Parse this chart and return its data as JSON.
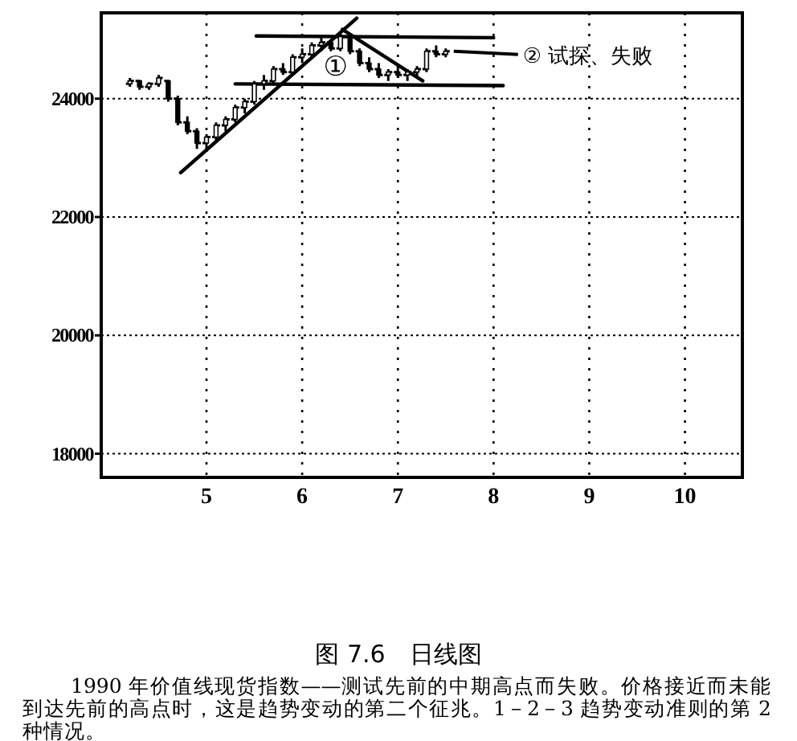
{
  "chart_data": {
    "type": "candlestick",
    "color": "#000000",
    "x": [
      4.2,
      4.3,
      4.4,
      4.5,
      4.6,
      4.7,
      4.8,
      4.9,
      5.0,
      5.1,
      5.2,
      5.3,
      5.4,
      5.5,
      5.6,
      5.7,
      5.8,
      5.9,
      6.0,
      6.1,
      6.2,
      6.3,
      6.4,
      6.5,
      6.6,
      6.7,
      6.8,
      6.9,
      7.0,
      7.1,
      7.2,
      7.3,
      7.4,
      7.5
    ],
    "ohlc": [
      [
        24250,
        24350,
        24200,
        24300
      ],
      [
        24300,
        24320,
        24150,
        24200
      ],
      [
        24200,
        24280,
        24150,
        24250
      ],
      [
        24250,
        24400,
        24200,
        24350
      ],
      [
        24300,
        24320,
        23950,
        24000
      ],
      [
        24000,
        24050,
        23550,
        23600
      ],
      [
        23600,
        23700,
        23400,
        23450
      ],
      [
        23450,
        23500,
        23150,
        23250
      ],
      [
        23250,
        23400,
        23100,
        23350
      ],
      [
        23350,
        23600,
        23300,
        23550
      ],
      [
        23550,
        23700,
        23450,
        23650
      ],
      [
        23650,
        23900,
        23600,
        23850
      ],
      [
        23850,
        24000,
        23750,
        23950
      ],
      [
        23950,
        24300,
        23900,
        24250
      ],
      [
        24250,
        24400,
        24150,
        24300
      ],
      [
        24300,
        24550,
        24250,
        24500
      ],
      [
        24500,
        24600,
        24400,
        24450
      ],
      [
        24450,
        24750,
        24400,
        24700
      ],
      [
        24700,
        24850,
        24600,
        24750
      ],
      [
        24750,
        24950,
        24700,
        24900
      ],
      [
        24900,
        25050,
        24800,
        24950
      ],
      [
        24950,
        25000,
        24800,
        24850
      ],
      [
        24850,
        25100,
        24800,
        25050
      ],
      [
        25050,
        25100,
        24750,
        24800
      ],
      [
        24800,
        24850,
        24550,
        24600
      ],
      [
        24600,
        24700,
        24450,
        24500
      ],
      [
        24500,
        24600,
        24350,
        24400
      ],
      [
        24400,
        24500,
        24300,
        24450
      ],
      [
        24450,
        24550,
        24350,
        24400
      ],
      [
        24400,
        24500,
        24300,
        24450
      ],
      [
        24450,
        24550,
        24350,
        24500
      ],
      [
        24500,
        24850,
        24450,
        24800
      ],
      [
        24800,
        24900,
        24700,
        24750
      ],
      [
        24750,
        24850,
        24700,
        24800
      ]
    ],
    "series": [
      {
        "type": "line",
        "color": "#000000",
        "x": [
          4.73,
          6.57
        ],
        "values": [
          22750,
          25360
        ]
      },
      {
        "type": "line",
        "color": "#000000",
        "x": [
          5.52,
          8.0
        ],
        "values": [
          25060,
          25030
        ]
      },
      {
        "type": "line",
        "color": "#000000",
        "x": [
          5.3,
          8.1
        ],
        "values": [
          24250,
          24220
        ]
      },
      {
        "type": "line",
        "color": "#000000",
        "x": [
          6.42,
          7.26
        ],
        "values": [
          25170,
          24300
        ]
      }
    ],
    "xlim": [
      3.9,
      10.6
    ],
    "xticks": [
      5,
      6,
      7,
      8,
      9,
      10
    ],
    "ylim": [
      17600,
      25450
    ],
    "yticks": [
      18000,
      20000,
      22000,
      24000
    ],
    "grid": true,
    "line_style": "solid",
    "annotations": [
      "①",
      "② 试探、失败",
      "图 7.6　日线图",
      "1990 年价值线现货指数——测试先前的中期高点而失败。价格接近而未能到达先前的高点时，这是趋势变动的第二个征兆。1－2－3 趋势变动准则的第 2 种情况。"
    ]
  }
}
